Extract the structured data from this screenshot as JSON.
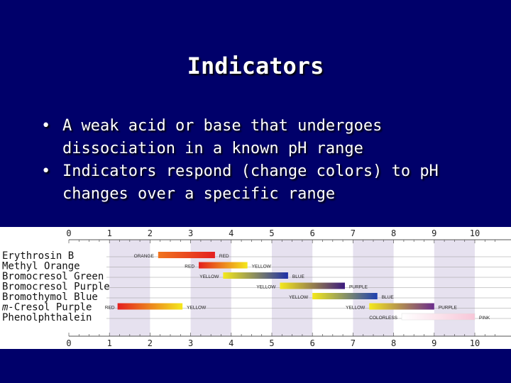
{
  "slide": {
    "title": "Indicators",
    "bullets": [
      "A weak acid or base that undergoes dissociation in a known pH range",
      "Indicators respond (change colors) to pH changes over a specific range"
    ],
    "bullet_glyph": "•"
  },
  "chart_data": {
    "type": "range",
    "x_ticks": [
      "0",
      "1",
      "2",
      "3",
      "4",
      "5",
      "6",
      "7",
      "8",
      "9",
      "10"
    ],
    "xlim": [
      0,
      10.5
    ],
    "background_bands": [
      [
        1,
        2
      ],
      [
        3,
        4
      ],
      [
        5,
        6
      ],
      [
        7,
        8
      ],
      [
        9,
        10
      ]
    ],
    "indicators": [
      {
        "name": "Erythrosin B",
        "name_italic_prefix": "",
        "start": 2.2,
        "end": 3.6,
        "low_color": "ORANGE",
        "high_color": "RED",
        "low_hex": "#f0751e",
        "high_hex": "#e41f1f"
      },
      {
        "name": "Methyl Orange",
        "name_italic_prefix": "",
        "start": 3.2,
        "end": 4.4,
        "low_color": "RED",
        "high_color": "YELLOW",
        "low_hex": "#e41f1f",
        "high_hex": "#f4e81c"
      },
      {
        "name": "Bromocresol Green",
        "name_italic_prefix": "",
        "start": 3.8,
        "end": 5.4,
        "low_color": "YELLOW",
        "high_color": "BLUE",
        "low_hex": "#f4e81c",
        "high_hex": "#1e2fa8"
      },
      {
        "name": "Bromocresol Purple",
        "name_italic_prefix": "",
        "start": 5.2,
        "end": 6.8,
        "low_color": "YELLOW",
        "high_color": "PURPLE",
        "low_hex": "#f4e81c",
        "high_hex": "#3b1a7e"
      },
      {
        "name": "Bromothymol Blue",
        "name_italic_prefix": "",
        "start": 6.0,
        "end": 7.6,
        "low_color": "YELLOW",
        "high_color": "BLUE",
        "low_hex": "#f4e81c",
        "high_hex": "#1e3fb0"
      },
      {
        "name": "Cresol Purple",
        "name_italic_prefix": "m-",
        "start": 1.2,
        "end": 2.8,
        "start2": 7.4,
        "end2": 9.0,
        "low_color": "RED",
        "mid_color": "YELLOW",
        "high_color": "PURPLE",
        "low_hex": "#e41f1f",
        "mid_hex": "#f4e81c",
        "high_hex": "#6a2c8c"
      },
      {
        "name": "Phenolphthalein",
        "name_italic_prefix": "",
        "start": 8.2,
        "end": 10.0,
        "low_color": "COLORLESS",
        "high_color": "PINK",
        "low_hex": "#ffffff",
        "high_hex": "#f7c6d8"
      }
    ]
  }
}
